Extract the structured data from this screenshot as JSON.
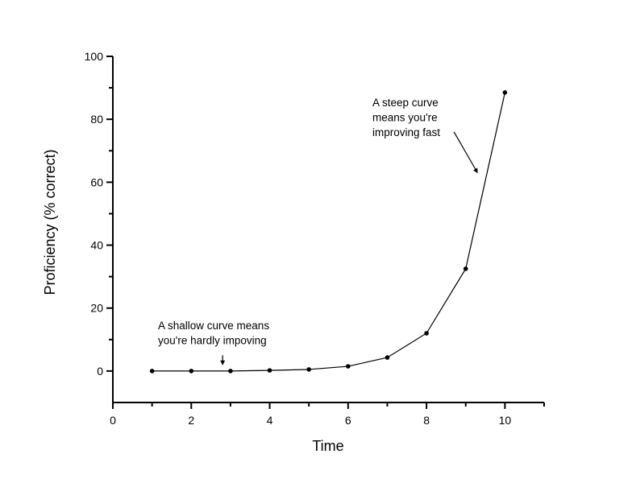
{
  "chart_data": {
    "type": "line",
    "title": "",
    "xlabel": "Time",
    "ylabel": "Proficiency (% correct)",
    "xlim": [
      0,
      11
    ],
    "ylim": [
      -10,
      100
    ],
    "xticks": [
      0,
      2,
      4,
      6,
      8,
      10
    ],
    "yticks": [
      0,
      20,
      40,
      60,
      80,
      100
    ],
    "grid": false,
    "legend": null,
    "series": [
      {
        "name": "Proficiency",
        "x": [
          1,
          2,
          3,
          4,
          5,
          6,
          7,
          8,
          9,
          10
        ],
        "y": [
          0,
          0,
          0,
          0.2,
          0.5,
          1.5,
          4.3,
          12,
          32.5,
          88.5
        ]
      }
    ],
    "annotations": [
      {
        "lines": [
          "A steep curve",
          "means you're",
          "improving fast"
        ],
        "arrow_from": [
          8.7,
          76
        ],
        "arrow_to": [
          9.3,
          63
        ]
      },
      {
        "lines": [
          "A shallow curve means",
          "you're hardly impoving"
        ],
        "arrow_from": [
          2.8,
          5
        ],
        "arrow_to": [
          2.8,
          2
        ]
      }
    ]
  }
}
